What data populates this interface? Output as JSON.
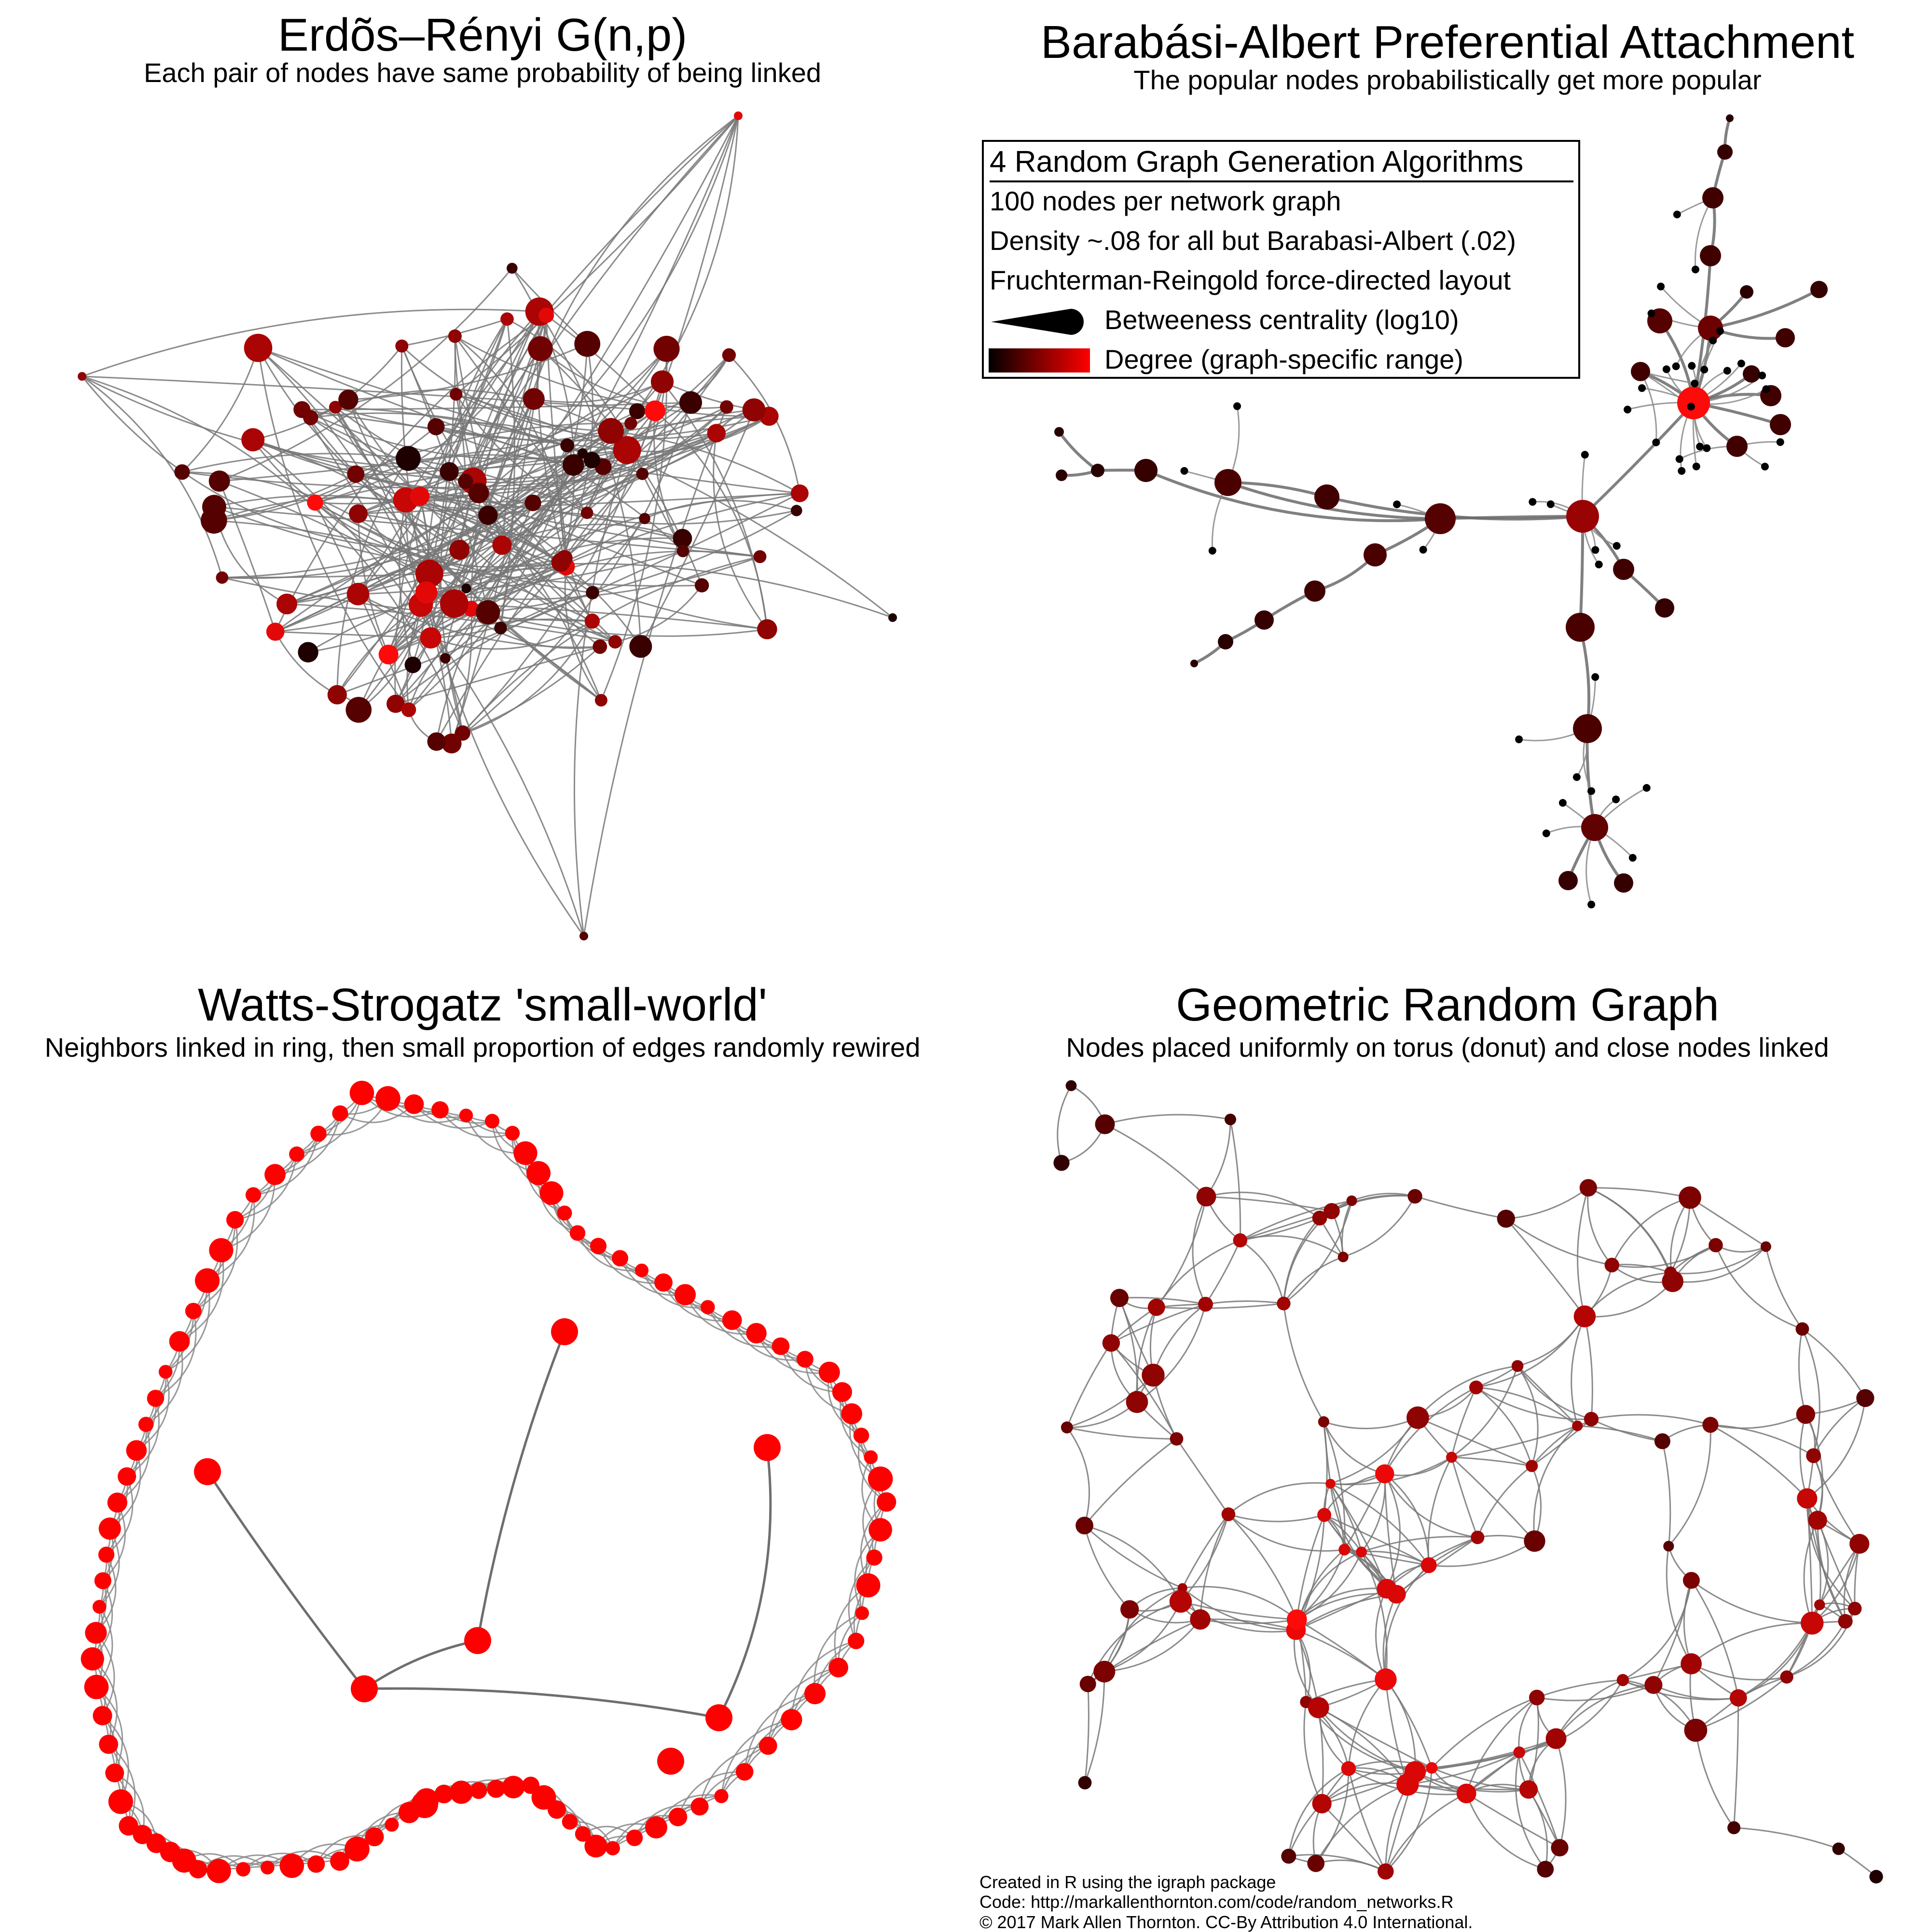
{
  "panels": {
    "erdos": {
      "title": "Erdõs–Rényi G(n,p)",
      "subtitle": "Each pair of nodes have same probability of being linked"
    },
    "barabasi": {
      "title": "Barabási-Albert Preferential Attachment",
      "subtitle": "The popular nodes probabilistically get more popular"
    },
    "watts": {
      "title": "Watts-Strogatz 'small-world'",
      "subtitle": "Neighbors linked in ring, then small proportion of edges randomly rewired"
    },
    "geometric": {
      "title": "Geometric Random Graph",
      "subtitle": "Nodes placed uniformly on torus (donut) and close nodes linked"
    }
  },
  "legend": {
    "title": "4 Random Graph Generation Algorithms",
    "line1": "100 nodes per network graph",
    "line2": "Density ~.08 for all but Barabasi-Albert (.02)",
    "line3": "Fruchterman-Reingold force-directed layout",
    "size_key": "Betweeness centrality (log10)",
    "color_key": "Degree (graph-specific range)"
  },
  "colors": {
    "degree_low": "#1a0000",
    "degree_high": "#ff0000",
    "edge": "#7a7a7a"
  },
  "credits": {
    "line1": "Created in R using the igraph package",
    "line2": "Code: http://markallenthornton.com/code/random_networks.R",
    "line3": "© 2017 Mark Allen Thornton. CC-By Attribution 4.0 International."
  }
}
